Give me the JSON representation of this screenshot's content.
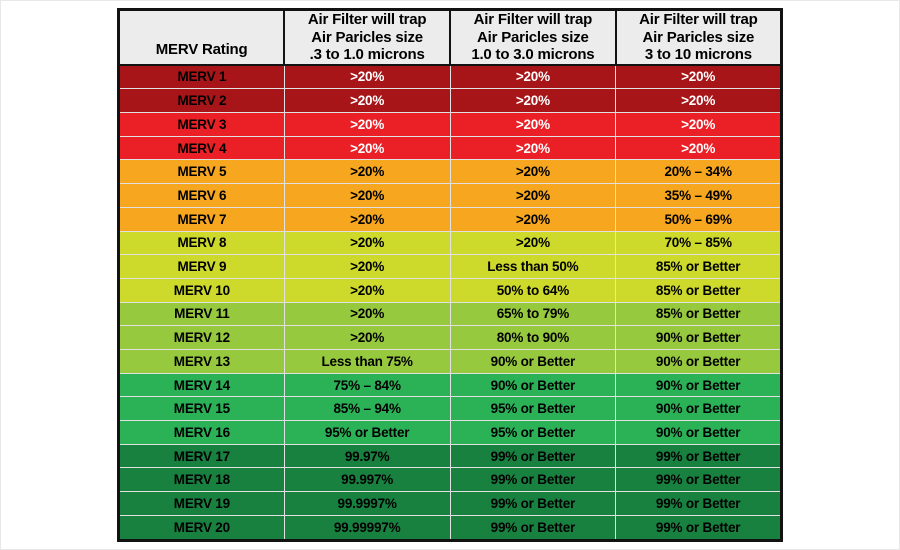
{
  "page": {
    "background": "#ffffff"
  },
  "table": {
    "border_color": "#121212",
    "rating_text_color": "#000000",
    "header": {
      "background": "#ececec",
      "text_color": "#000000",
      "rating_label": "MERV Rating",
      "columns": [
        {
          "lines": [
            "Air Filter will trap",
            "Air Paricles size",
            ".3 to 1.0 microns"
          ]
        },
        {
          "lines": [
            "Air Filter will trap",
            "Air Paricles size",
            "1.0 to 3.0 microns"
          ]
        },
        {
          "lines": [
            "Air Filter will trap",
            "Air Paricles size",
            "3 to 10 microns"
          ]
        }
      ]
    },
    "row_styles": [
      {
        "start": 1,
        "end": 2,
        "bg": "#a81519",
        "text": "#ffffff"
      },
      {
        "start": 3,
        "end": 4,
        "bg": "#ea2026",
        "text": "#ffffff"
      },
      {
        "start": 5,
        "end": 7,
        "bg": "#f7a71f",
        "text": "#000000"
      },
      {
        "start": 8,
        "end": 10,
        "bg": "#cdd92b",
        "text": "#000000"
      },
      {
        "start": 11,
        "end": 13,
        "bg": "#96c93e",
        "text": "#000000"
      },
      {
        "start": 14,
        "end": 16,
        "bg": "#2bb257",
        "text": "#000000"
      },
      {
        "start": 17,
        "end": 20,
        "bg": "#19813f",
        "text": "#000000"
      }
    ]
  },
  "chart_data": {
    "type": "table",
    "title": "",
    "columns": [
      "MERV Rating",
      "Air Filter will trap Air Paricles size .3 to 1.0 microns",
      "Air Filter will trap Air Paricles size 1.0 to 3.0 microns",
      "Air Filter will trap Air Paricles size 3 to 10 microns"
    ],
    "rows": [
      [
        "MERV 1",
        ">20%",
        ">20%",
        ">20%"
      ],
      [
        "MERV 2",
        ">20%",
        ">20%",
        ">20%"
      ],
      [
        "MERV 3",
        ">20%",
        ">20%",
        ">20%"
      ],
      [
        "MERV 4",
        ">20%",
        ">20%",
        ">20%"
      ],
      [
        "MERV 5",
        ">20%",
        ">20%",
        "20% – 34%"
      ],
      [
        "MERV 6",
        ">20%",
        ">20%",
        "35% – 49%"
      ],
      [
        "MERV 7",
        ">20%",
        ">20%",
        "50% – 69%"
      ],
      [
        "MERV 8",
        ">20%",
        ">20%",
        "70% – 85%"
      ],
      [
        "MERV 9",
        ">20%",
        "Less than 50%",
        "85% or Better"
      ],
      [
        "MERV 10",
        ">20%",
        "50% to 64%",
        "85% or Better"
      ],
      [
        "MERV 11",
        ">20%",
        "65% to 79%",
        "85% or Better"
      ],
      [
        "MERV 12",
        ">20%",
        "80% to 90%",
        "90% or Better"
      ],
      [
        "MERV 13",
        "Less than 75%",
        "90% or Better",
        "90% or Better"
      ],
      [
        "MERV 14",
        "75% – 84%",
        "90% or Better",
        "90% or Better"
      ],
      [
        "MERV 15",
        "85% – 94%",
        "95% or Better",
        "90% or Better"
      ],
      [
        "MERV 16",
        "95% or Better",
        "95% or Better",
        "90% or Better"
      ],
      [
        "MERV 17",
        "99.97%",
        "99% or Better",
        "99% or Better"
      ],
      [
        "MERV 18",
        "99.997%",
        "99% or Better",
        "99% or Better"
      ],
      [
        "MERV 19",
        "99.9997%",
        "99% or Better",
        "99% or Better"
      ],
      [
        "MERV 20",
        "99.99997%",
        "99% or Better",
        "99% or Better"
      ]
    ]
  }
}
